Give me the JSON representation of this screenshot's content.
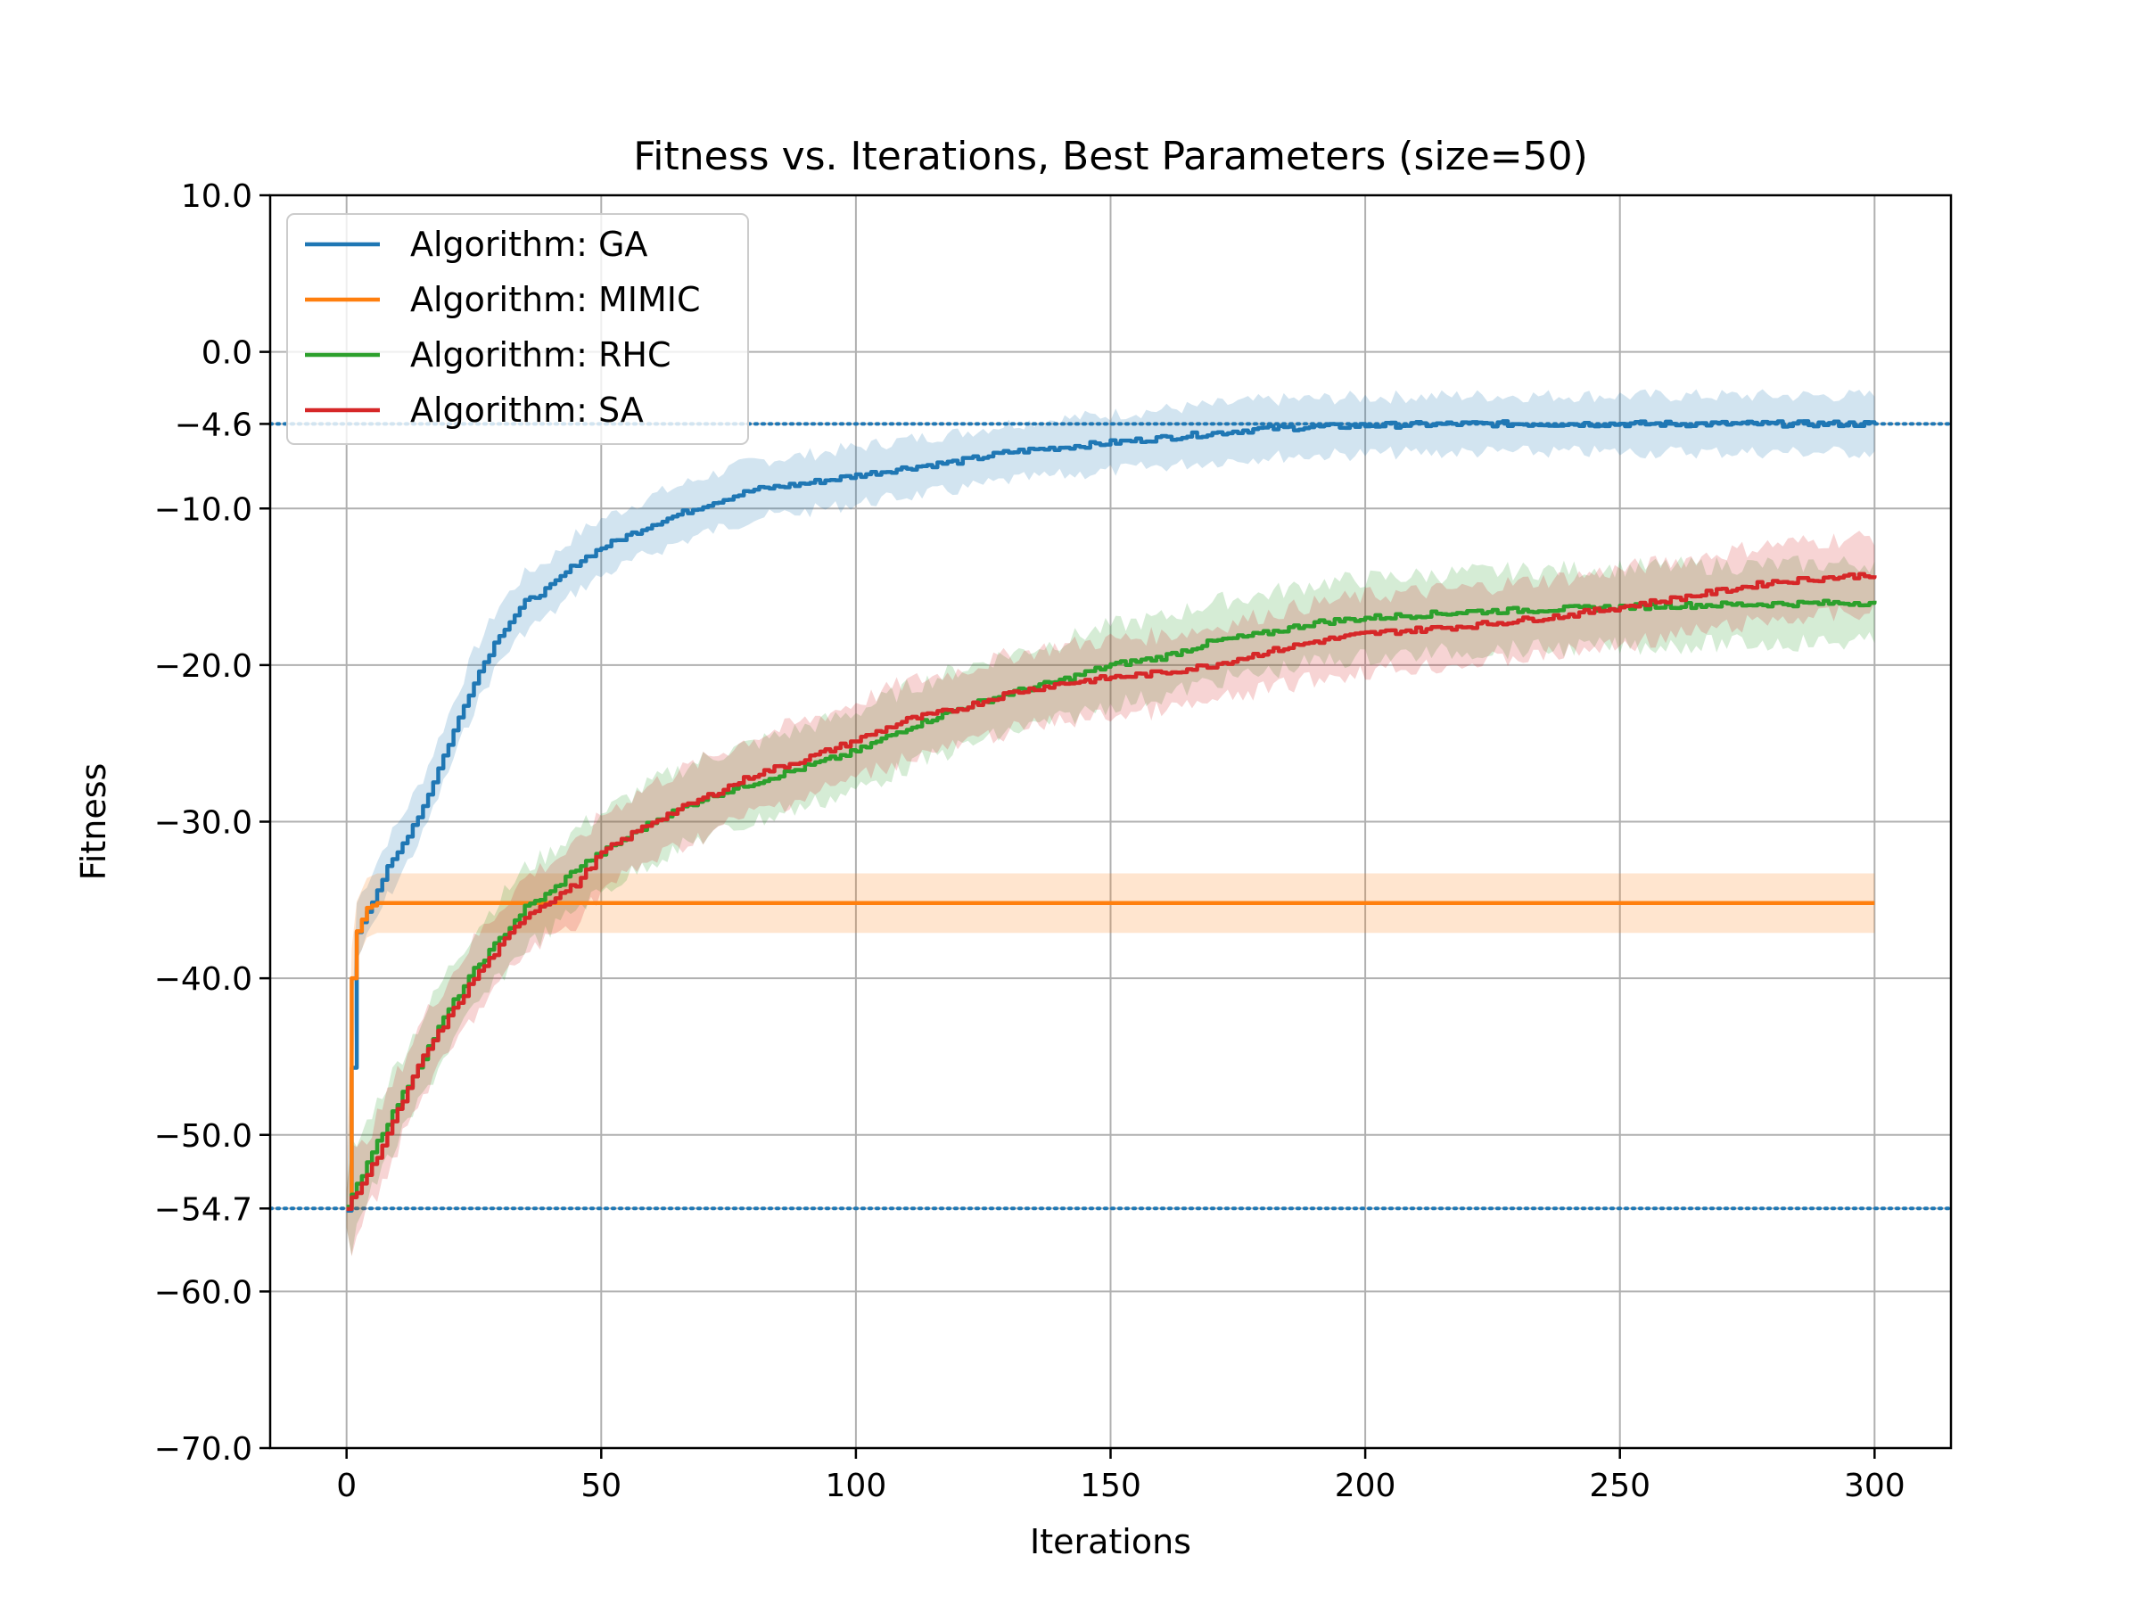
{
  "chart_data": {
    "type": "line",
    "title": "Fitness vs. Iterations, Best Parameters (size=50)",
    "xlabel": "Iterations",
    "ylabel": "Fitness",
    "xlim": [
      -15,
      315
    ],
    "ylim": [
      -70,
      10
    ],
    "xticks": [
      0,
      50,
      100,
      150,
      200,
      250,
      300
    ],
    "yticks": [
      10,
      0,
      -4.6,
      -10,
      -20,
      -30,
      -40,
      -50,
      -54.7,
      -60,
      -70
    ],
    "ytick_labels": [
      "10.0",
      "0.0",
      "−4.6",
      "−10.0",
      "−20.0",
      "−30.0",
      "−40.0",
      "−50.0",
      "−54.7",
      "−60.0",
      "−70.0"
    ],
    "xtick_labels": [
      "0",
      "50",
      "100",
      "150",
      "200",
      "250",
      "300"
    ],
    "grid": true,
    "legend_position": "top-left",
    "reference_lines": [
      {
        "y": -4.6,
        "style": "dotted",
        "color": "#1f77b4"
      },
      {
        "y": -54.7,
        "style": "dotted",
        "color": "#1f77b4"
      }
    ],
    "series": [
      {
        "name": "Algorithm: GA",
        "color": "#1f77b4",
        "x": [
          0,
          2,
          5,
          8,
          10,
          15,
          20,
          25,
          30,
          35,
          40,
          45,
          50,
          60,
          70,
          80,
          90,
          100,
          110,
          120,
          130,
          140,
          150,
          160,
          170,
          180,
          200,
          220,
          240,
          260,
          280,
          300
        ],
        "y": [
          -54.7,
          -37,
          -35,
          -33,
          -32,
          -29,
          -25,
          -21,
          -18,
          -16,
          -15,
          -13.5,
          -12.5,
          -11,
          -9.8,
          -8.8,
          -8.4,
          -7.9,
          -7.4,
          -7.0,
          -6.4,
          -6.1,
          -5.8,
          -5.5,
          -5.2,
          -4.9,
          -4.7,
          -4.6,
          -4.6,
          -4.6,
          -4.6,
          -4.6
        ],
        "band": 1.8
      },
      {
        "name": "Algorithm: MIMIC",
        "color": "#ff7f0e",
        "x": [
          0,
          1,
          2,
          4,
          6,
          300
        ],
        "y": [
          -54.7,
          -40,
          -37,
          -35.5,
          -35.2,
          -35.2
        ],
        "band": 1.9
      },
      {
        "name": "Algorithm: RHC",
        "color": "#2ca02c",
        "x": [
          0,
          5,
          10,
          15,
          20,
          25,
          30,
          35,
          40,
          45,
          50,
          60,
          70,
          80,
          90,
          100,
          110,
          120,
          130,
          140,
          150,
          160,
          170,
          180,
          190,
          200,
          220,
          240,
          260,
          280,
          300
        ],
        "y": [
          -54.7,
          -51,
          -48,
          -45,
          -42,
          -39.5,
          -37.5,
          -35.5,
          -34.5,
          -33,
          -32,
          -30,
          -28.5,
          -27.5,
          -26.5,
          -25.5,
          -24,
          -22.8,
          -21.8,
          -21,
          -20,
          -19.5,
          -18.5,
          -18,
          -17.3,
          -17,
          -16.6,
          -16.4,
          -16.2,
          -16.1,
          -16.0
        ],
        "band": 2.5
      },
      {
        "name": "Algorithm: SA",
        "color": "#d62728",
        "x": [
          0,
          5,
          10,
          15,
          20,
          25,
          30,
          35,
          40,
          45,
          50,
          60,
          70,
          80,
          90,
          100,
          110,
          120,
          130,
          140,
          150,
          160,
          170,
          180,
          190,
          200,
          220,
          240,
          260,
          280,
          300
        ],
        "y": [
          -54.7,
          -52,
          -48.5,
          -45,
          -42.5,
          -40,
          -38,
          -36,
          -35,
          -34,
          -32,
          -30,
          -28.5,
          -27,
          -26,
          -24.8,
          -23.5,
          -22.8,
          -21.8,
          -21.2,
          -20.8,
          -20.5,
          -20,
          -19.2,
          -18.5,
          -18,
          -17.5,
          -16.8,
          -15.8,
          -14.7,
          -14.2
        ],
        "band": 2.4
      }
    ]
  }
}
